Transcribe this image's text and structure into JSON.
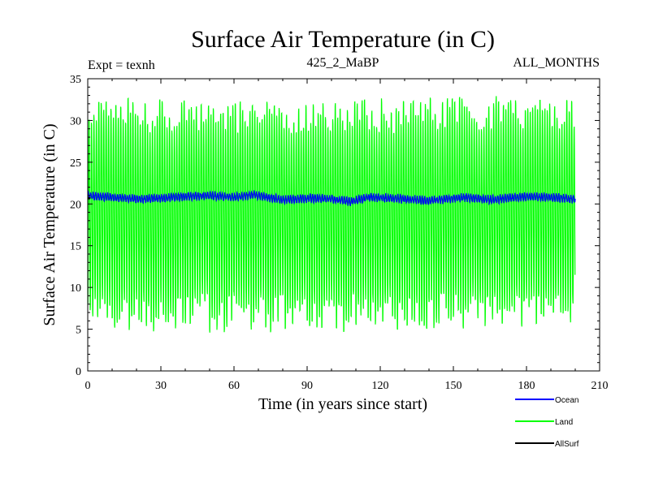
{
  "chart_data": {
    "type": "line",
    "title": "Surface Air Temperature (in C)",
    "subtitle_left": "Expt = texnh",
    "subtitle_center": "425_2_MaBP",
    "subtitle_right": "ALL_MONTHS",
    "xlabel": "Time (in years since start)",
    "ylabel": "Surface Air Temperature (in C)",
    "xlim": [
      0,
      210
    ],
    "ylim": [
      0,
      35
    ],
    "xticks": [
      0,
      30,
      60,
      90,
      120,
      150,
      180,
      210
    ],
    "yticks": [
      0,
      5,
      10,
      15,
      20,
      25,
      30,
      35
    ],
    "legend_position": "bottom-right",
    "series": [
      {
        "name": "Ocean",
        "color": "#0000ff",
        "description": "monthly values, ~20.3-21.5 with slow multi-decadal wobble",
        "x_range": [
          0,
          200
        ],
        "baseline": [
          [
            0,
            21.0
          ],
          [
            10,
            20.8
          ],
          [
            20,
            20.6
          ],
          [
            30,
            20.7
          ],
          [
            40,
            20.9
          ],
          [
            50,
            21.0
          ],
          [
            60,
            20.8
          ],
          [
            68,
            21.1
          ],
          [
            80,
            20.5
          ],
          [
            90,
            20.7
          ],
          [
            100,
            20.6
          ],
          [
            108,
            20.3
          ],
          [
            115,
            20.8
          ],
          [
            125,
            20.7
          ],
          [
            140,
            20.4
          ],
          [
            155,
            20.8
          ],
          [
            165,
            20.5
          ],
          [
            180,
            20.9
          ],
          [
            190,
            20.8
          ],
          [
            200,
            20.6
          ]
        ],
        "amplitude": 0.5
      },
      {
        "name": "Land",
        "color": "#00ff00",
        "description": "strong annual cycle; minima ~5-9, maxima ~30-33",
        "x_range": [
          0,
          200
        ],
        "annual_min_range": [
          4.5,
          9.0
        ],
        "annual_max_range": [
          29.0,
          33.0
        ]
      },
      {
        "name": "AllSurf",
        "color": "#000000",
        "description": "mostly hidden beneath other series",
        "x_range": [
          0,
          200
        ],
        "values_approx": [
          20.5,
          20.8
        ]
      }
    ]
  }
}
